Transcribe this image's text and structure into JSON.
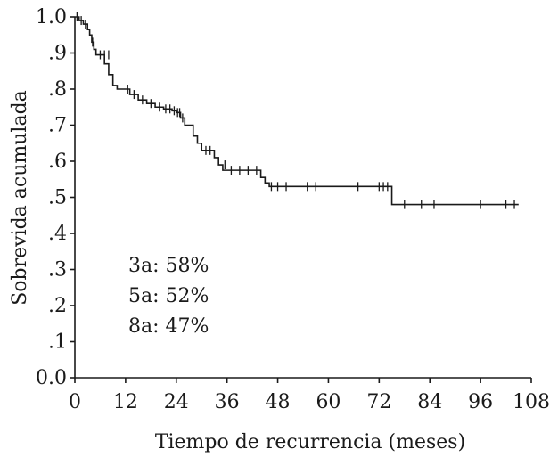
{
  "chart_data": {
    "type": "line",
    "xlabel": "Tiempo de recurrencia (meses)",
    "ylabel": "Sobrevida acumulada",
    "xlim": [
      0,
      108
    ],
    "ylim": [
      0,
      1
    ],
    "x_ticks": [
      "0",
      "12",
      "24",
      "36",
      "48",
      "60",
      "72",
      "84",
      "96",
      "108"
    ],
    "y_ticks": [
      "0.0",
      ".1",
      ".2",
      ".3",
      ".4",
      ".5",
      ".6",
      ".7",
      ".8",
      ".9",
      "1.0"
    ],
    "grid": false,
    "annotations": [
      "3a: 58%",
      "5a: 52%",
      "8a: 47%"
    ],
    "series": [
      {
        "x": [
          0,
          1,
          2,
          3,
          3.5,
          4,
          4.5,
          5,
          7,
          8,
          9,
          10,
          13,
          15,
          17,
          19,
          21,
          23,
          24,
          25,
          26,
          28,
          29,
          30,
          33,
          34,
          35,
          36,
          44,
          45,
          46,
          75,
          105
        ],
        "y": [
          1.0,
          0.99,
          0.98,
          0.965,
          0.95,
          0.93,
          0.91,
          0.895,
          0.87,
          0.84,
          0.81,
          0.8,
          0.785,
          0.77,
          0.76,
          0.75,
          0.745,
          0.74,
          0.735,
          0.72,
          0.7,
          0.67,
          0.65,
          0.63,
          0.61,
          0.59,
          0.575,
          0.575,
          0.555,
          0.54,
          0.53,
          0.48,
          0.48
        ]
      }
    ],
    "censored": {
      "x": [
        0.5,
        1.5,
        2.5,
        4.2,
        6,
        7,
        8,
        12.5,
        14,
        16,
        18,
        20,
        21.5,
        22.5,
        23.5,
        24.3,
        24.8,
        25.5,
        31,
        32,
        35.5,
        37,
        39,
        41,
        43,
        46.5,
        48,
        50,
        55,
        57,
        67,
        72,
        73,
        74,
        78,
        82,
        85,
        96,
        102,
        104
      ],
      "y": [
        1.0,
        0.99,
        0.98,
        0.93,
        0.895,
        0.895,
        0.895,
        0.8,
        0.785,
        0.77,
        0.76,
        0.75,
        0.745,
        0.745,
        0.74,
        0.735,
        0.735,
        0.72,
        0.63,
        0.63,
        0.59,
        0.575,
        0.575,
        0.575,
        0.575,
        0.53,
        0.53,
        0.53,
        0.53,
        0.53,
        0.53,
        0.53,
        0.53,
        0.53,
        0.48,
        0.48,
        0.48,
        0.48,
        0.48,
        0.48
      ]
    }
  }
}
